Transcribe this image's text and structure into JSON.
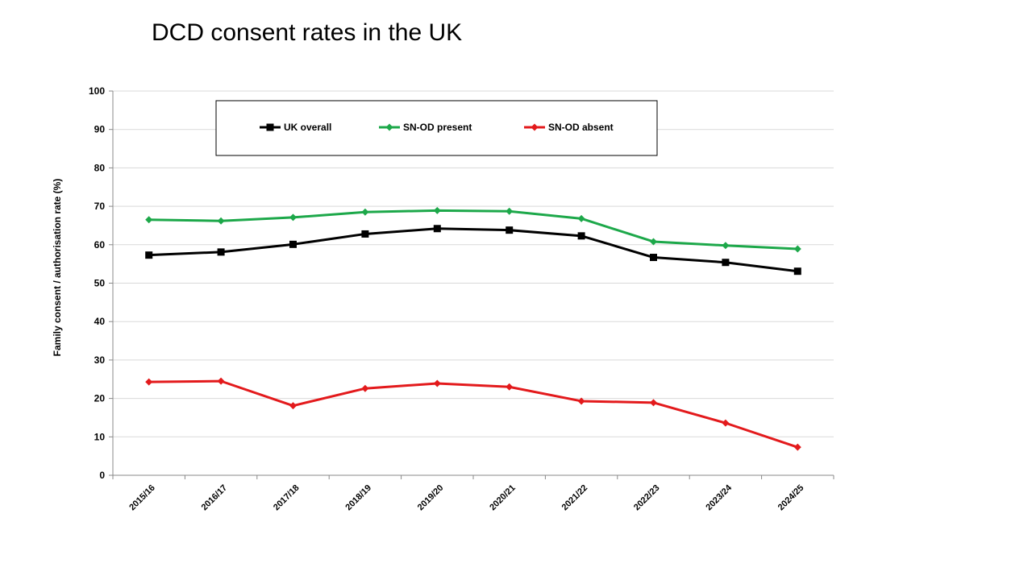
{
  "slide": {
    "title": "DCD consent rates in the UK"
  },
  "chart_data": {
    "type": "line",
    "title": "DCD consent rates in the UK",
    "xlabel": "",
    "ylabel": "Family consent / authorisation rate (%)",
    "ylim": [
      0,
      100
    ],
    "yticks": [
      0,
      10,
      20,
      30,
      40,
      50,
      60,
      70,
      80,
      90,
      100
    ],
    "grid": true,
    "legend_position": "top",
    "categories": [
      "2015/16",
      "2016/17",
      "2017/18",
      "2018/19",
      "2019/20",
      "2020/21",
      "2021/22",
      "2022/23",
      "2023/24",
      "2024/25"
    ],
    "series": [
      {
        "name": "UK overall",
        "color": "#000000",
        "marker": "square",
        "values": [
          57.3,
          58.1,
          60.1,
          62.8,
          64.2,
          63.8,
          62.3,
          56.7,
          55.4,
          53.1
        ]
      },
      {
        "name": "SN-OD present",
        "color": "#1da84a",
        "marker": "diamond",
        "values": [
          66.5,
          66.2,
          67.1,
          68.5,
          68.9,
          68.7,
          66.8,
          60.8,
          59.8,
          58.9
        ]
      },
      {
        "name": "SN-OD absent",
        "color": "#e31a1c",
        "marker": "diamond",
        "values": [
          24.3,
          24.5,
          18.1,
          22.6,
          23.9,
          23.0,
          19.3,
          18.9,
          13.6,
          7.3
        ]
      }
    ]
  }
}
